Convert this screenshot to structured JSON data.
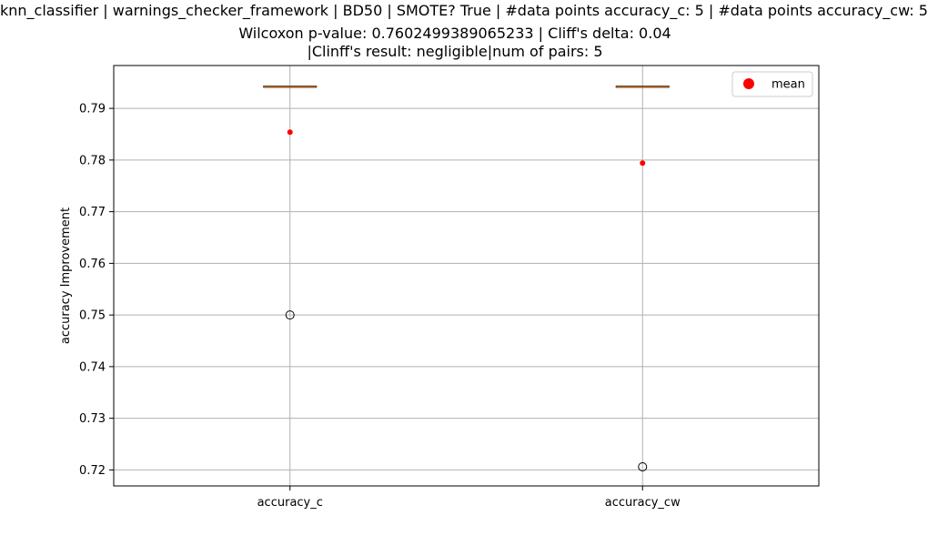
{
  "chart_data": {
    "type": "box",
    "title_lines": [
      "knn_classifier | warnings_checker_framework | BD50 | SMOTE? True | #data points accuracy_c: 5 | #data points accuracy_cw: 5",
      "Wilcoxon p-value: 0.7602499389065233 | Cliff's delta: 0.04",
      "|Clinff's result: negligible|num of pairs: 5"
    ],
    "ylabel": "accuracy Improvement",
    "ylim": [
      0.7169,
      0.7983
    ],
    "yticks": [
      0.72,
      0.73,
      0.74,
      0.75,
      0.76,
      0.77,
      0.78,
      0.79
    ],
    "ytick_labels": [
      "0.72",
      "0.73",
      "0.74",
      "0.75",
      "0.76",
      "0.77",
      "0.78",
      "0.79"
    ],
    "categories": [
      "accuracy_c",
      "accuracy_cw"
    ],
    "boxes": [
      {
        "name": "accuracy_c",
        "q1": 0.7942,
        "median": 0.7942,
        "q3": 0.7942,
        "whisker_low": 0.7942,
        "whisker_high": 0.7942,
        "outliers": [
          0.75
        ],
        "mean": 0.7854
      },
      {
        "name": "accuracy_cw",
        "q1": 0.7942,
        "median": 0.7942,
        "q3": 0.7942,
        "whisker_low": 0.7942,
        "whisker_high": 0.7942,
        "outliers": [
          0.7206
        ],
        "mean": 0.7794
      }
    ],
    "grid": true,
    "legend": {
      "position": "top-right",
      "label": "mean"
    },
    "colors": {
      "mean": "#ff0000",
      "median": "#ff7f0e",
      "grid": "#b0b0b0",
      "box": "#000000"
    }
  }
}
